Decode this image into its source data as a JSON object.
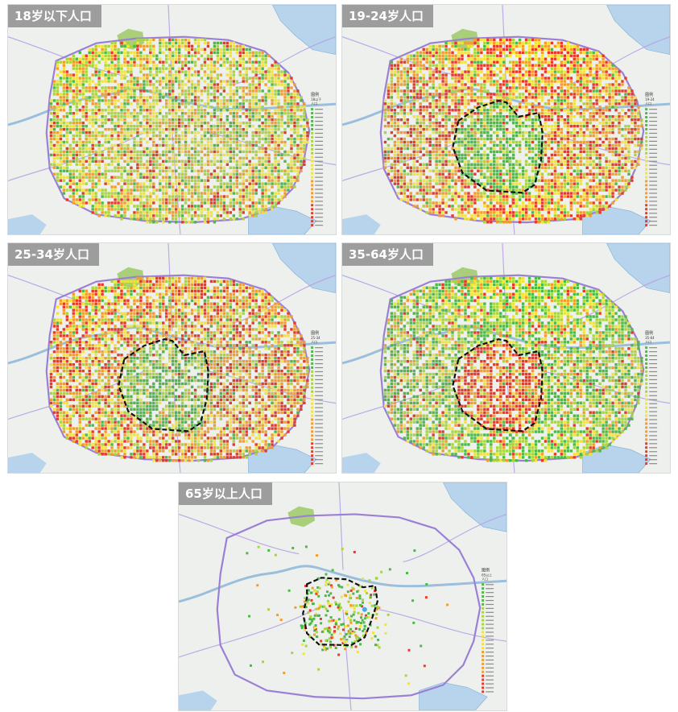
{
  "panels": [
    {
      "id": "p1",
      "title": "18岁以下人口",
      "pattern": "under18",
      "has_boundary": false,
      "legend_header": [
        "图例",
        "18以下",
        "人口"
      ]
    },
    {
      "id": "p2",
      "title": "19-24岁人口",
      "pattern": "young",
      "has_boundary": true,
      "legend_header": [
        "图例",
        "19-24",
        "人口"
      ]
    },
    {
      "id": "p3",
      "title": "25-34岁人口",
      "pattern": "young",
      "has_boundary": true,
      "legend_header": [
        "图例",
        "25-34",
        "人口"
      ]
    },
    {
      "id": "p4",
      "title": "35-64岁人口",
      "pattern": "middle",
      "has_boundary": true,
      "legend_header": [
        "图例",
        "35-64",
        "人口"
      ]
    },
    {
      "id": "p5",
      "title": "65岁以上人口",
      "pattern": "elderly",
      "has_boundary": true,
      "legend_header": [
        "图例",
        "65以上",
        "人口"
      ]
    }
  ],
  "colors": {
    "map_background": "#eef0ee",
    "water": "#b8d4ec",
    "water_edge": "#7eaed6",
    "park": "#a9cf7a",
    "ring_road": "#9b7fd6",
    "highway": "#b6a2e4",
    "boundary": "#111111",
    "density_low": "#4cb848",
    "density_mid_low": "#a8d43c",
    "density_mid": "#f2e33a",
    "density_mid_high": "#f39c2b",
    "density_high": "#e53a2b",
    "title_tag_bg": "#969696",
    "title_tag_text": "#ffffff"
  }
}
